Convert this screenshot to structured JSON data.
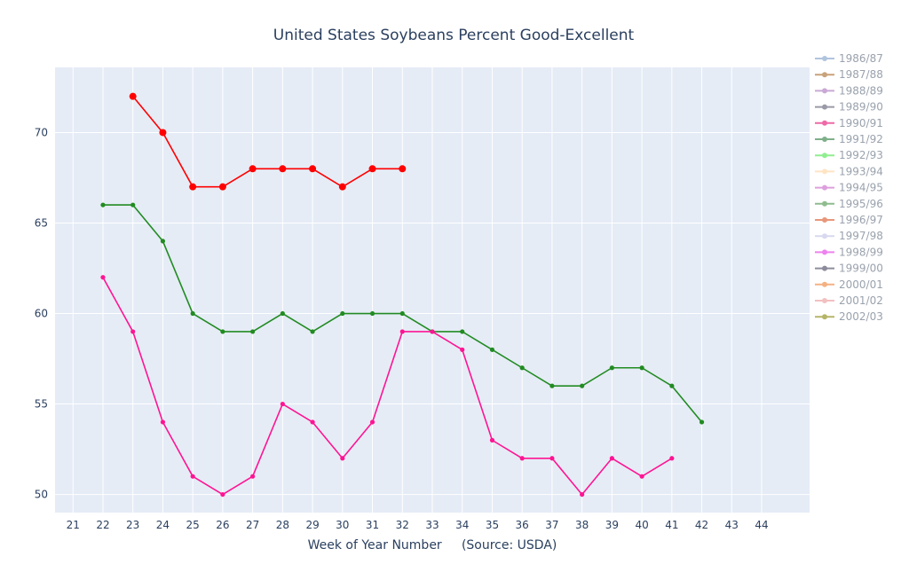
{
  "chart_data": {
    "type": "line",
    "title": "United States Soybeans Percent Good-Excellent",
    "xlabel": "Week of Year Number     (Source: USDA)",
    "ylabel": "",
    "xlim": [
      20.4,
      45.6
    ],
    "ylim": [
      49,
      73.6
    ],
    "x_ticks": [
      21,
      22,
      23,
      24,
      25,
      26,
      27,
      28,
      29,
      30,
      31,
      32,
      33,
      34,
      35,
      36,
      37,
      38,
      39,
      40,
      41,
      42,
      43,
      44
    ],
    "y_ticks": [
      50,
      55,
      60,
      65,
      70
    ],
    "grid": true,
    "legend_position": "right",
    "series": [
      {
        "name": "1986/87",
        "color": "#b0c4de",
        "x": [],
        "y": []
      },
      {
        "name": "1987/88",
        "color": "#c8a27a",
        "x": [],
        "y": []
      },
      {
        "name": "1988/89",
        "color": "#c9a9d4",
        "x": [],
        "y": []
      },
      {
        "name": "1989/90",
        "color": "#9a9aa8",
        "x": [],
        "y": []
      },
      {
        "name": "1990/91",
        "color": "#ee6aa7",
        "x": [],
        "y": []
      },
      {
        "name": "1991/92",
        "color": "#7fb08a",
        "x": [],
        "y": []
      },
      {
        "name": "1992/93",
        "color": "#90ee90",
        "x": [],
        "y": []
      },
      {
        "name": "1993/94",
        "color": "#ffe4c4",
        "x": [],
        "y": []
      },
      {
        "name": "1994/95",
        "color": "#dda0dd",
        "x": [],
        "y": []
      },
      {
        "name": "1995/96",
        "color": "#8fbc8f",
        "x": [],
        "y": []
      },
      {
        "name": "1996/97",
        "color": "#e9967a",
        "x": [],
        "y": []
      },
      {
        "name": "1997/98",
        "color": "#d8d8f0",
        "x": [],
        "y": []
      },
      {
        "name": "1998/99",
        "color": "#ee82ee",
        "x": [],
        "y": []
      },
      {
        "name": "1999/00",
        "color": "#8c8c9c",
        "x": [],
        "y": []
      },
      {
        "name": "2000/01",
        "color": "#f4b183",
        "x": [],
        "y": []
      },
      {
        "name": "2001/02",
        "color": "#f2c0c0",
        "x": [],
        "y": []
      },
      {
        "name": "2002/03",
        "color": "#b5b56a",
        "x": [],
        "y": []
      }
    ],
    "plotted_series": [
      {
        "color": "#ff0000",
        "marker_radius": 4,
        "line_width": 1.6,
        "x": [
          23,
          24,
          25,
          26,
          27,
          28,
          29,
          30,
          31,
          32
        ],
        "y": [
          72,
          70,
          67,
          67,
          68,
          68,
          68,
          67,
          68,
          68
        ]
      },
      {
        "color": "#228b22",
        "marker_radius": 2.6,
        "line_width": 1.6,
        "x": [
          22,
          23,
          24,
          25,
          26,
          27,
          28,
          29,
          30,
          31,
          32,
          33,
          34,
          35,
          36,
          37,
          38,
          39,
          40,
          41,
          42
        ],
        "y": [
          66,
          66,
          64,
          60,
          59,
          59,
          60,
          59,
          60,
          60,
          60,
          59,
          59,
          58,
          57,
          56,
          56,
          57,
          57,
          56,
          54
        ]
      },
      {
        "color": "#ff1493",
        "marker_radius": 2.6,
        "line_width": 1.6,
        "x": [
          22,
          23,
          24,
          25,
          26,
          27,
          28,
          29,
          30,
          31,
          32,
          33,
          34,
          35,
          36,
          37,
          38,
          39,
          40,
          41
        ],
        "y": [
          62,
          59,
          54,
          51,
          50,
          51,
          55,
          54,
          52,
          54,
          59,
          59,
          58,
          53,
          52,
          52,
          50,
          52,
          51,
          52
        ]
      }
    ],
    "colors": {
      "plot_bg": "#e5ecf6",
      "grid": "#ffffff",
      "tick_text": "#2a3f5f",
      "legend_text": "#9aa2ad"
    }
  }
}
